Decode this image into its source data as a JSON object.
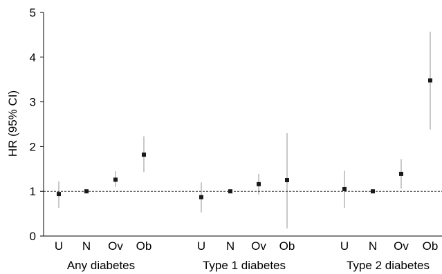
{
  "chart_data": {
    "type": "scatter",
    "ylabel": "HR (95% CI)",
    "ylim": [
      0,
      5
    ],
    "yticks": [
      0,
      1,
      2,
      3,
      4,
      5
    ],
    "reference_line": 1,
    "grid": false,
    "groups": [
      {
        "label": "Any diabetes",
        "points": [
          {
            "category": "U",
            "hr": 0.94,
            "ci_low": 0.63,
            "ci_high": 1.22
          },
          {
            "category": "N",
            "hr": 1.0,
            "ci_low": 0.97,
            "ci_high": 1.03
          },
          {
            "category": "Ov",
            "hr": 1.26,
            "ci_low": 1.1,
            "ci_high": 1.45
          },
          {
            "category": "Ob",
            "hr": 1.82,
            "ci_low": 1.43,
            "ci_high": 2.23
          }
        ]
      },
      {
        "label": "Type 1 diabetes",
        "points": [
          {
            "category": "U",
            "hr": 0.87,
            "ci_low": 0.53,
            "ci_high": 1.2
          },
          {
            "category": "N",
            "hr": 1.0,
            "ci_low": 0.97,
            "ci_high": 1.03
          },
          {
            "category": "Ov",
            "hr": 1.16,
            "ci_low": 0.93,
            "ci_high": 1.39
          },
          {
            "category": "Ob",
            "hr": 1.25,
            "ci_low": 0.17,
            "ci_high": 2.3
          }
        ]
      },
      {
        "label": "Type 2 diabetes",
        "points": [
          {
            "category": "U",
            "hr": 1.05,
            "ci_low": 0.63,
            "ci_high": 1.46
          },
          {
            "category": "N",
            "hr": 1.0,
            "ci_low": 0.97,
            "ci_high": 1.03
          },
          {
            "category": "Ov",
            "hr": 1.39,
            "ci_low": 1.06,
            "ci_high": 1.72
          },
          {
            "category": "Ob",
            "hr": 3.48,
            "ci_low": 2.38,
            "ci_high": 4.57
          }
        ]
      }
    ],
    "colors": {
      "marker": "#1a1a1a",
      "ci": "#aaaaaa",
      "axis": "#000000",
      "reference": "#333333"
    }
  }
}
